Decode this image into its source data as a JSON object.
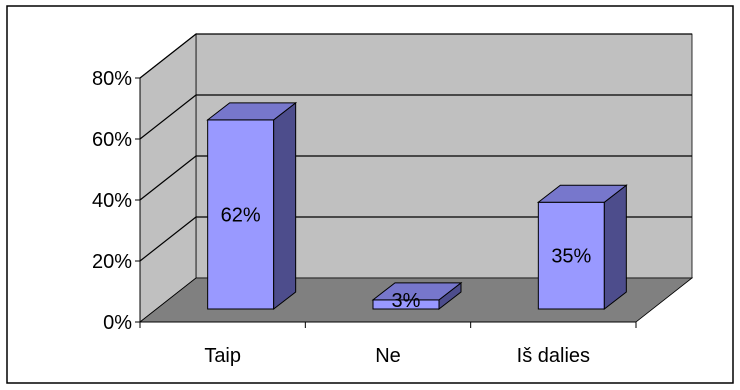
{
  "chart_data": {
    "type": "bar",
    "categories": [
      "Taip",
      "Ne",
      "Iš dalies"
    ],
    "values": [
      62,
      3,
      35
    ],
    "data_labels": [
      "62%",
      "3%",
      "35%"
    ],
    "ylim": [
      0,
      80
    ],
    "y_ticks": [
      0,
      20,
      40,
      60,
      80
    ],
    "y_tick_labels": [
      "0%",
      "20%",
      "40%",
      "60%",
      "80%"
    ],
    "grid": true,
    "legend": "none",
    "title": "",
    "xlabel": "",
    "ylabel": "",
    "colors": {
      "bar_front": "#9999ff",
      "bar_side": "#4d4d8c",
      "bar_top": "#7777cc",
      "back_wall": "#c0c0c0",
      "side_wall": "#c0c0c0",
      "floor": "#808080",
      "gridline": "#000000"
    }
  }
}
